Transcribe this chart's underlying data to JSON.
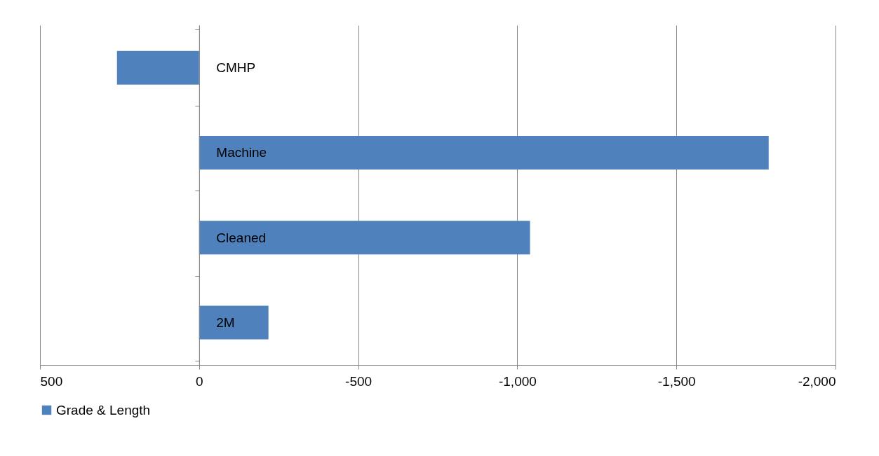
{
  "chart_data": {
    "type": "bar",
    "orientation": "horizontal",
    "categories": [
      "CMHP",
      "Machine",
      "Cleaned",
      "2M"
    ],
    "series": [
      {
        "name": "Grade & Length",
        "color": "#4f81bd",
        "values": [
          258,
          -1790,
          -1040,
          -218
        ]
      }
    ],
    "xlim": [
      500,
      -2000
    ],
    "xticks": [
      {
        "value": 500,
        "label": "500"
      },
      {
        "value": 0,
        "label": "0"
      },
      {
        "value": -500,
        "label": "-500"
      },
      {
        "value": -1000,
        "label": "-1,000"
      },
      {
        "value": -1500,
        "label": "-1,500"
      },
      {
        "value": -2000,
        "label": "-2,000"
      }
    ],
    "grid": "x",
    "legend": "bottom"
  }
}
